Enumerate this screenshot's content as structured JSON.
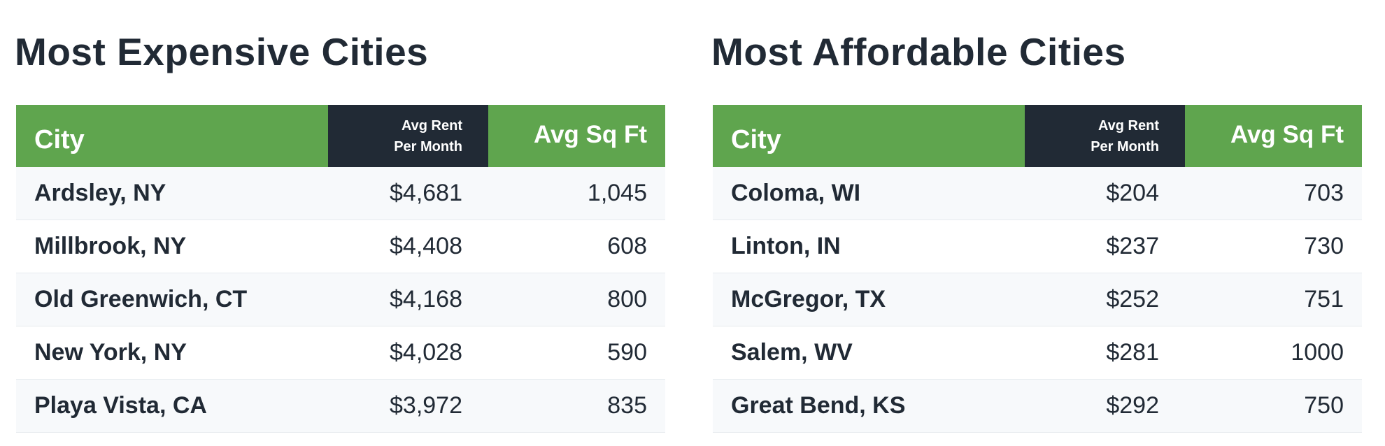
{
  "expensive": {
    "title": "Most Expensive Cities",
    "headers": {
      "city": "City",
      "rent_line1": "Avg Rent",
      "rent_line2": "Per Month",
      "sqft": "Avg Sq Ft"
    },
    "rows": [
      {
        "city": "Ardsley, NY",
        "rent": "$4,681",
        "sqft": "1,045"
      },
      {
        "city": "Millbrook, NY",
        "rent": "$4,408",
        "sqft": "608"
      },
      {
        "city": "Old Greenwich, CT",
        "rent": "$4,168",
        "sqft": "800"
      },
      {
        "city": "New York, NY",
        "rent": "$4,028",
        "sqft": "590"
      },
      {
        "city": "Playa Vista, CA",
        "rent": "$3,972",
        "sqft": "835"
      }
    ]
  },
  "affordable": {
    "title": "Most Affordable Cities",
    "headers": {
      "city": "City",
      "rent_line1": "Avg Rent",
      "rent_line2": "Per Month",
      "sqft": "Avg Sq Ft"
    },
    "rows": [
      {
        "city": "Coloma, WI",
        "rent": "$204",
        "sqft": "703"
      },
      {
        "city": "Linton, IN",
        "rent": "$237",
        "sqft": "730"
      },
      {
        "city": "McGregor, TX",
        "rent": "$252",
        "sqft": "751"
      },
      {
        "city": "Salem, WV",
        "rent": "$281",
        "sqft": "1000"
      },
      {
        "city": "Great Bend, KS",
        "rent": "$292",
        "sqft": "750"
      }
    ]
  },
  "colors": {
    "header_green": "#5fa54e",
    "header_dark": "#212a35",
    "text_dark": "#212a35",
    "row_stripe": "#f7f9fb"
  }
}
